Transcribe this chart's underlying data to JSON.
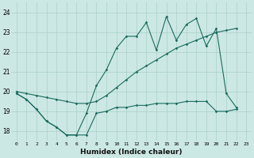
{
  "xlabel": "Humidex (Indice chaleur)",
  "bg_color": "#cce8e4",
  "grid_color": "#aacfca",
  "line_color": "#1a6b5e",
  "x_ticks": [
    0,
    1,
    2,
    3,
    4,
    5,
    6,
    7,
    8,
    9,
    10,
    11,
    12,
    13,
    14,
    15,
    16,
    17,
    18,
    19,
    20,
    21,
    22,
    23
  ],
  "ylim": [
    17.5,
    24.5
  ],
  "xlim": [
    -0.5,
    23.5
  ],
  "y_ticks": [
    18,
    19,
    20,
    21,
    22,
    23,
    24
  ],
  "max_x": [
    0,
    1,
    2,
    3,
    4,
    5,
    6,
    7,
    8,
    9,
    10,
    11,
    12,
    13,
    14,
    15,
    16,
    17,
    18,
    19,
    20,
    21,
    22
  ],
  "max_y": [
    19.9,
    19.6,
    19.1,
    18.5,
    18.2,
    17.8,
    17.8,
    18.9,
    20.3,
    21.1,
    22.2,
    22.8,
    22.8,
    23.5,
    22.1,
    23.8,
    22.6,
    23.4,
    23.7,
    22.3,
    23.2,
    19.9,
    19.2
  ],
  "mean_x": [
    0,
    1,
    2,
    3,
    4,
    5,
    6,
    7,
    8,
    9,
    10,
    11,
    12,
    13,
    14,
    15,
    16,
    17,
    18,
    19,
    20,
    21,
    22
  ],
  "mean_y": [
    20.0,
    19.9,
    19.8,
    19.7,
    19.6,
    19.5,
    19.4,
    19.4,
    19.5,
    19.8,
    20.2,
    20.6,
    21.0,
    21.3,
    21.6,
    21.9,
    22.2,
    22.4,
    22.6,
    22.8,
    23.0,
    23.1,
    23.2
  ],
  "min_x": [
    0,
    1,
    2,
    3,
    4,
    5,
    6,
    7,
    8,
    9,
    10,
    11,
    12,
    13,
    14,
    15,
    16,
    17,
    18,
    19,
    20,
    21,
    22
  ],
  "min_y": [
    19.9,
    19.6,
    19.1,
    18.5,
    18.2,
    17.8,
    17.8,
    17.8,
    18.9,
    19.0,
    19.2,
    19.2,
    19.3,
    19.3,
    19.4,
    19.4,
    19.4,
    19.5,
    19.5,
    19.5,
    19.0,
    19.0,
    19.1
  ]
}
